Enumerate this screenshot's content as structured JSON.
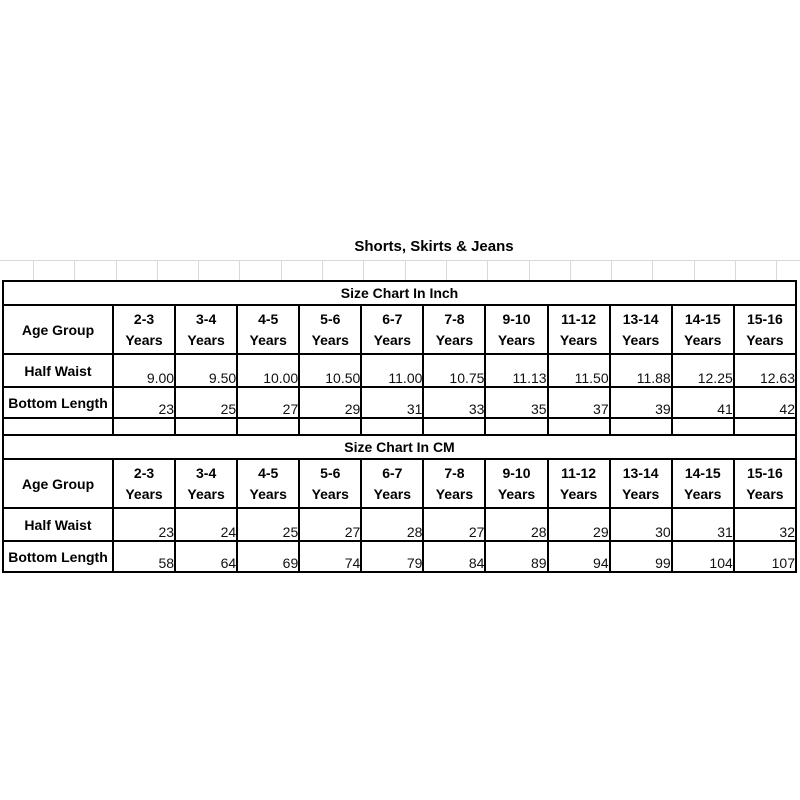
{
  "title": "Shorts, Skirts & Jeans",
  "sections": [
    {
      "name": "inch",
      "section_title": "Size Chart In Inch",
      "corner_label": "Age Group",
      "age_suffix": "Years",
      "age_ranges": [
        "2-3",
        "3-4",
        "4-5",
        "5-6",
        "6-7",
        "7-8",
        "9-10",
        "11-12",
        "13-14",
        "14-15",
        "15-16"
      ],
      "rows": [
        {
          "label": "Half Waist",
          "values": [
            "9.00",
            "9.50",
            "10.00",
            "10.50",
            "11.00",
            "10.75",
            "11.13",
            "11.50",
            "11.88",
            "12.25",
            "12.63"
          ]
        },
        {
          "label": "Bottom Length",
          "values": [
            "23",
            "25",
            "27",
            "29",
            "31",
            "33",
            "35",
            "37",
            "39",
            "41",
            "42"
          ]
        }
      ]
    },
    {
      "name": "cm",
      "section_title": "Size Chart In CM",
      "corner_label": "Age Group",
      "age_suffix": "Years",
      "age_ranges": [
        "2-3",
        "3-4",
        "4-5",
        "5-6",
        "6-7",
        "7-8",
        "9-10",
        "11-12",
        "13-14",
        "14-15",
        "15-16"
      ],
      "rows": [
        {
          "label": "Half Waist",
          "values": [
            "23",
            "24",
            "25",
            "27",
            "28",
            "27",
            "28",
            "29",
            "30",
            "31",
            "32"
          ]
        },
        {
          "label": "Bottom Length",
          "values": [
            "58",
            "64",
            "69",
            "74",
            "79",
            "84",
            "89",
            "94",
            "99",
            "104",
            "107"
          ]
        }
      ]
    }
  ],
  "chart_data": [
    {
      "type": "table",
      "title": "Size Chart In Inch",
      "columns": [
        "Age Group",
        "2-3 Years",
        "3-4 Years",
        "4-5 Years",
        "5-6 Years",
        "6-7 Years",
        "7-8 Years",
        "9-10 Years",
        "11-12 Years",
        "13-14 Years",
        "14-15 Years",
        "15-16 Years"
      ],
      "rows": [
        [
          "Half Waist",
          9.0,
          9.5,
          10.0,
          10.5,
          11.0,
          10.75,
          11.13,
          11.5,
          11.88,
          12.25,
          12.63
        ],
        [
          "Bottom Length",
          23,
          25,
          27,
          29,
          31,
          33,
          35,
          37,
          39,
          41,
          42
        ]
      ]
    },
    {
      "type": "table",
      "title": "Size Chart In CM",
      "columns": [
        "Age Group",
        "2-3 Years",
        "3-4 Years",
        "4-5 Years",
        "5-6 Years",
        "6-7 Years",
        "7-8 Years",
        "9-10 Years",
        "11-12 Years",
        "13-14 Years",
        "14-15 Years",
        "15-16 Years"
      ],
      "rows": [
        [
          "Half Waist",
          23,
          24,
          25,
          27,
          28,
          27,
          28,
          29,
          30,
          31,
          32
        ],
        [
          "Bottom Length",
          58,
          64,
          69,
          74,
          79,
          84,
          89,
          94,
          99,
          104,
          107
        ]
      ]
    }
  ],
  "colors": {
    "background": "#ffffff",
    "table_border": "#000000",
    "gridline": "#d9d9d9",
    "heading_text": "#000000",
    "value_text": "#111111"
  }
}
